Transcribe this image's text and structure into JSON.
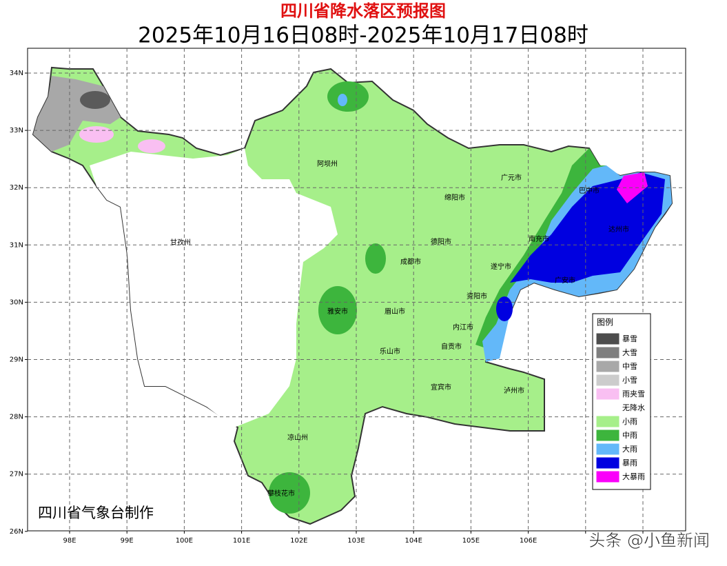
{
  "header": {
    "title": "四川省降水落区预报图",
    "subtitle": "2025年10月16日08时-2025年10月17日08时"
  },
  "map": {
    "lat_labels": [
      "34N",
      "33N",
      "32N",
      "31N",
      "30N",
      "29N",
      "28N",
      "27N",
      "26N"
    ],
    "lon_labels": [
      "98E",
      "99E",
      "100E",
      "101E",
      "102E",
      "103E",
      "104E",
      "105E",
      "106E"
    ],
    "regions": [
      "阿坝州",
      "甘孜州",
      "广元市",
      "巴中市",
      "绵阳市",
      "德阳市",
      "南充市",
      "达州市",
      "成都市",
      "遂宁市",
      "广安市",
      "资阳市",
      "雅安市",
      "眉山市",
      "内江市",
      "自贡市",
      "乐山市",
      "宜宾市",
      "泸州市",
      "凉山州",
      "攀枝花市"
    ]
  },
  "legend": {
    "title": "图例",
    "items": [
      {
        "label": "暴雪",
        "color": "#4d4d4d"
      },
      {
        "label": "大雪",
        "color": "#7f7f7f"
      },
      {
        "label": "中雪",
        "color": "#a8a8a8"
      },
      {
        "label": "小雪",
        "color": "#cccccc"
      },
      {
        "label": "雨夹雪",
        "color": "#f9bff2"
      },
      {
        "label": "无降水",
        "color": "#ffffff"
      },
      {
        "label": "小雨",
        "color": "#a6ef8a"
      },
      {
        "label": "中雨",
        "color": "#3db53d"
      },
      {
        "label": "大雨",
        "color": "#63b8f9"
      },
      {
        "label": "暴雨",
        "color": "#0000e0"
      },
      {
        "label": "大暴雨",
        "color": "#fa00fa"
      }
    ]
  },
  "credit": "四川省气象台制作",
  "watermark": "头条 @小鱼新闻"
}
